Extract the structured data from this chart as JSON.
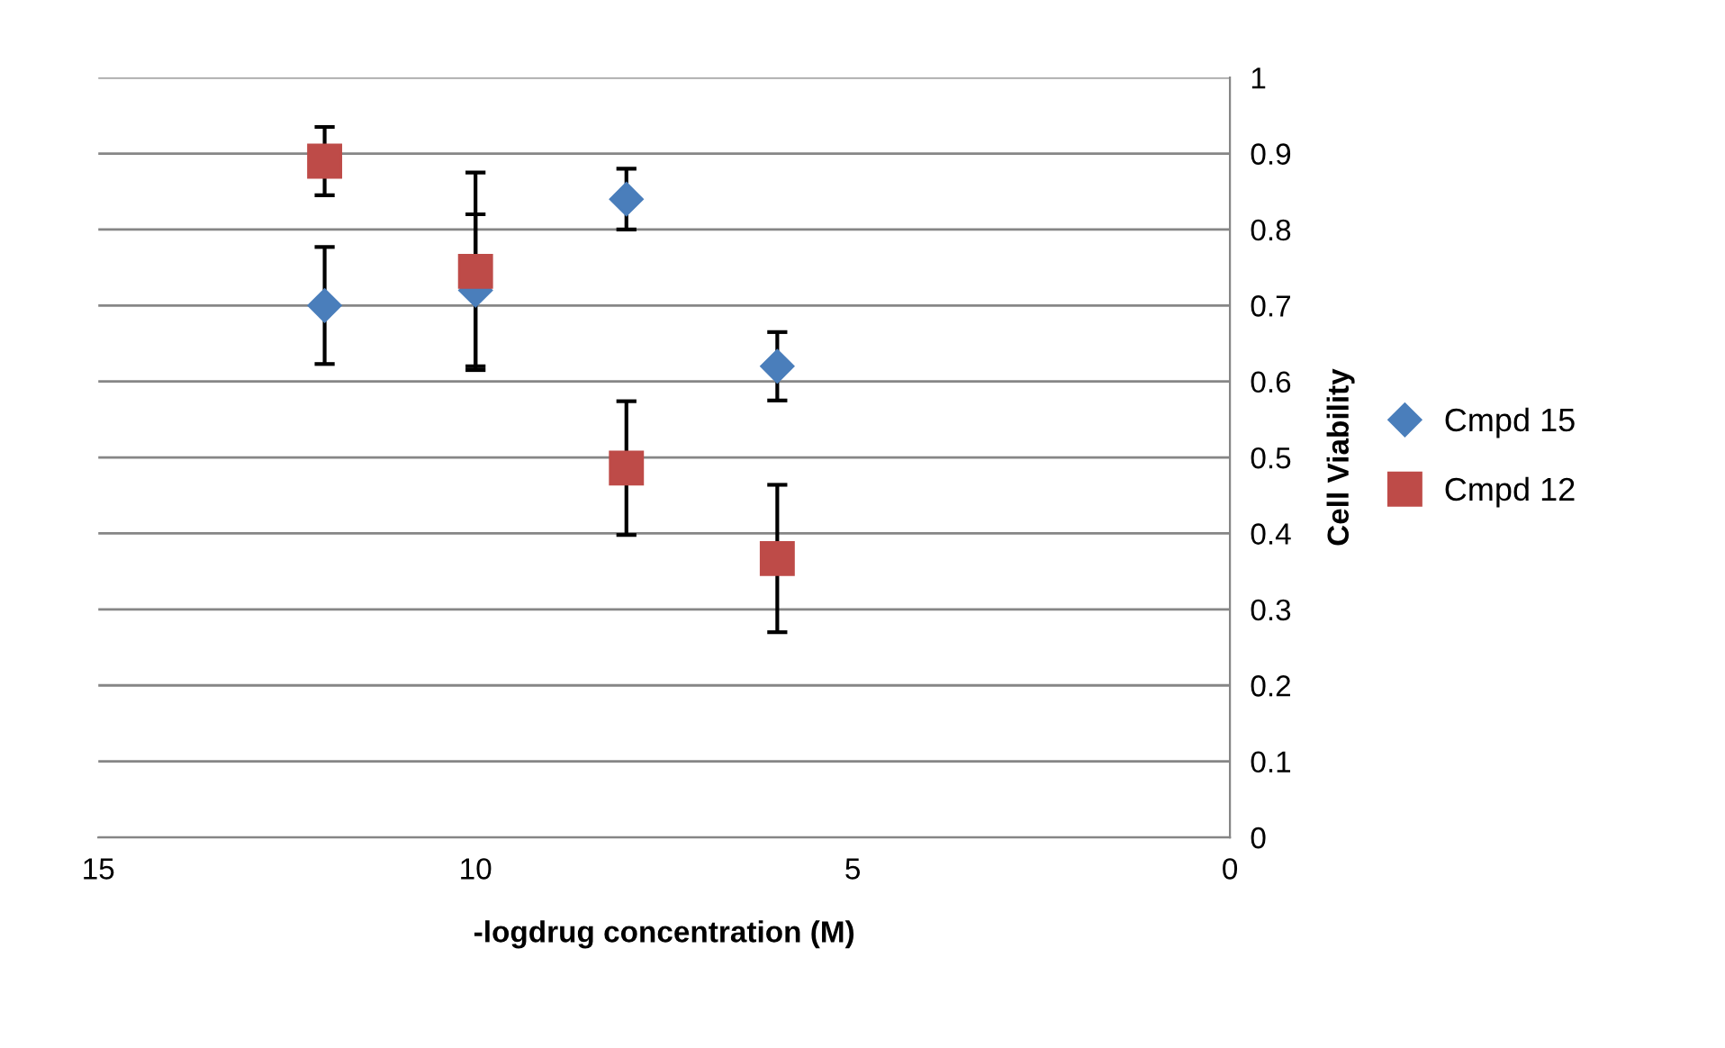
{
  "chart_data": {
    "type": "scatter",
    "xlabel": "-logdrug concentration (M)",
    "ylabel": "Cell Viability",
    "x": [
      12,
      10,
      8,
      6
    ],
    "series": [
      {
        "name": "Cmpd 15",
        "color": "#4a7ebb",
        "marker": "diamond",
        "values": [
          0.7,
          0.72,
          0.84,
          0.62
        ],
        "errors": [
          0.077,
          0.1,
          0.04,
          0.045
        ]
      },
      {
        "name": "Cmpd 12",
        "color": "#be4b48",
        "marker": "square",
        "values": [
          0.89,
          0.745,
          0.486,
          0.367
        ],
        "errors": [
          0.045,
          0.13,
          0.088,
          0.097
        ]
      }
    ],
    "xlim": [
      15,
      0
    ],
    "xticks": [
      15,
      10,
      5,
      0
    ],
    "ylim": [
      0,
      1
    ],
    "yticks": [
      0,
      0.1,
      0.2,
      0.3,
      0.4,
      0.5,
      0.6,
      0.7,
      0.8,
      0.9,
      1
    ],
    "grid": "y",
    "legend": "right"
  }
}
